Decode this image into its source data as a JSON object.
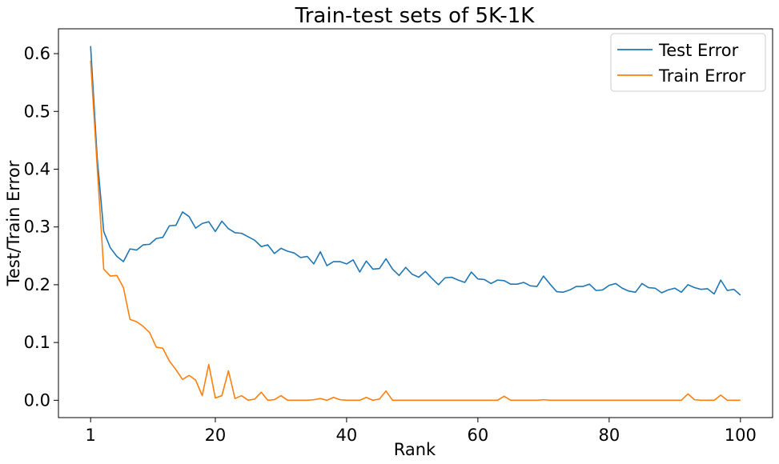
{
  "chart_data": {
    "type": "line",
    "title": "Train-test sets of 5K-1K",
    "xlabel": "Rank",
    "ylabel": "Test/Train Error",
    "xlim": [
      -3.9,
      104.9
    ],
    "ylim": [
      -0.03,
      0.643
    ],
    "xticks": [
      1,
      20,
      40,
      60,
      80,
      100
    ],
    "yticks": [
      0.0,
      0.1,
      0.2,
      0.3,
      0.4,
      0.5,
      0.6
    ],
    "grid": false,
    "legend_position": "top-right",
    "series": [
      {
        "name": "Test Error",
        "color": "#1f77b4",
        "x": [
          1,
          2,
          3,
          4,
          5,
          6,
          7,
          8,
          9,
          10,
          11,
          12,
          13,
          14,
          15,
          16,
          17,
          18,
          19,
          20,
          21,
          22,
          23,
          24,
          25,
          26,
          27,
          28,
          29,
          30,
          31,
          32,
          33,
          34,
          35,
          36,
          37,
          38,
          39,
          40,
          41,
          42,
          43,
          44,
          45,
          46,
          47,
          48,
          49,
          50,
          51,
          52,
          53,
          54,
          55,
          56,
          57,
          58,
          59,
          60,
          61,
          62,
          63,
          64,
          65,
          66,
          67,
          68,
          69,
          70,
          71,
          72,
          73,
          74,
          75,
          76,
          77,
          78,
          79,
          80,
          81,
          82,
          83,
          84,
          85,
          86,
          87,
          88,
          89,
          90,
          91,
          92,
          93,
          94,
          95,
          96,
          97,
          98,
          99,
          100
        ],
        "y": [
          0.613,
          0.42,
          0.292,
          0.264,
          0.249,
          0.24,
          0.262,
          0.26,
          0.269,
          0.27,
          0.28,
          0.282,
          0.302,
          0.303,
          0.326,
          0.318,
          0.298,
          0.306,
          0.309,
          0.292,
          0.31,
          0.297,
          0.29,
          0.289,
          0.283,
          0.277,
          0.266,
          0.269,
          0.254,
          0.263,
          0.258,
          0.255,
          0.247,
          0.249,
          0.236,
          0.257,
          0.233,
          0.24,
          0.24,
          0.236,
          0.243,
          0.222,
          0.241,
          0.227,
          0.228,
          0.245,
          0.227,
          0.216,
          0.23,
          0.218,
          0.213,
          0.223,
          0.211,
          0.2,
          0.212,
          0.213,
          0.208,
          0.204,
          0.222,
          0.21,
          0.209,
          0.202,
          0.208,
          0.207,
          0.201,
          0.201,
          0.204,
          0.198,
          0.197,
          0.215,
          0.201,
          0.188,
          0.187,
          0.191,
          0.197,
          0.197,
          0.201,
          0.19,
          0.191,
          0.199,
          0.202,
          0.194,
          0.189,
          0.187,
          0.202,
          0.195,
          0.194,
          0.186,
          0.191,
          0.194,
          0.187,
          0.2,
          0.195,
          0.192,
          0.193,
          0.184,
          0.208,
          0.19,
          0.192,
          0.182
        ]
      },
      {
        "name": "Train Error",
        "color": "#ff7f0e",
        "x": [
          1,
          2,
          3,
          4,
          5,
          6,
          7,
          8,
          9,
          10,
          11,
          12,
          13,
          14,
          15,
          16,
          17,
          18,
          19,
          20,
          21,
          22,
          23,
          24,
          25,
          26,
          27,
          28,
          29,
          30,
          31,
          32,
          33,
          34,
          35,
          36,
          37,
          38,
          39,
          40,
          41,
          42,
          43,
          44,
          45,
          46,
          47,
          48,
          49,
          50,
          51,
          52,
          53,
          54,
          55,
          56,
          57,
          58,
          59,
          60,
          61,
          62,
          63,
          64,
          65,
          66,
          67,
          68,
          69,
          70,
          71,
          72,
          73,
          74,
          75,
          76,
          77,
          78,
          79,
          80,
          81,
          82,
          83,
          84,
          85,
          86,
          87,
          88,
          89,
          90,
          91,
          92,
          93,
          94,
          95,
          96,
          97,
          98,
          99,
          100
        ],
        "y": [
          0.588,
          0.404,
          0.227,
          0.215,
          0.216,
          0.195,
          0.14,
          0.136,
          0.128,
          0.117,
          0.092,
          0.09,
          0.068,
          0.053,
          0.036,
          0.043,
          0.035,
          0.008,
          0.062,
          0.004,
          0.008,
          0.051,
          0.003,
          0.008,
          0.0,
          0.002,
          0.014,
          0.0,
          0.001,
          0.008,
          0.0,
          0.0,
          0.0,
          0.0,
          0.001,
          0.003,
          0.0,
          0.005,
          0.001,
          0.0,
          0.0,
          0.0,
          0.005,
          0.0,
          0.002,
          0.016,
          0.0,
          0.0,
          0.0,
          0.0,
          0.0,
          0.0,
          0.0,
          0.0,
          0.0,
          0.0,
          0.0,
          0.0,
          0.0,
          0.0,
          0.0,
          0.0,
          0.0,
          0.007,
          0.0,
          0.0,
          0.0,
          0.0,
          0.0,
          0.001,
          0.0,
          0.0,
          0.0,
          0.0,
          0.0,
          0.0,
          0.0,
          0.0,
          0.0,
          0.0,
          0.0,
          0.0,
          0.0,
          0.0,
          0.0,
          0.0,
          0.0,
          0.0,
          0.0,
          0.0,
          0.0,
          0.011,
          0.001,
          0.0,
          0.0,
          0.0,
          0.009,
          0.0,
          0.0,
          0.0
        ]
      }
    ]
  }
}
